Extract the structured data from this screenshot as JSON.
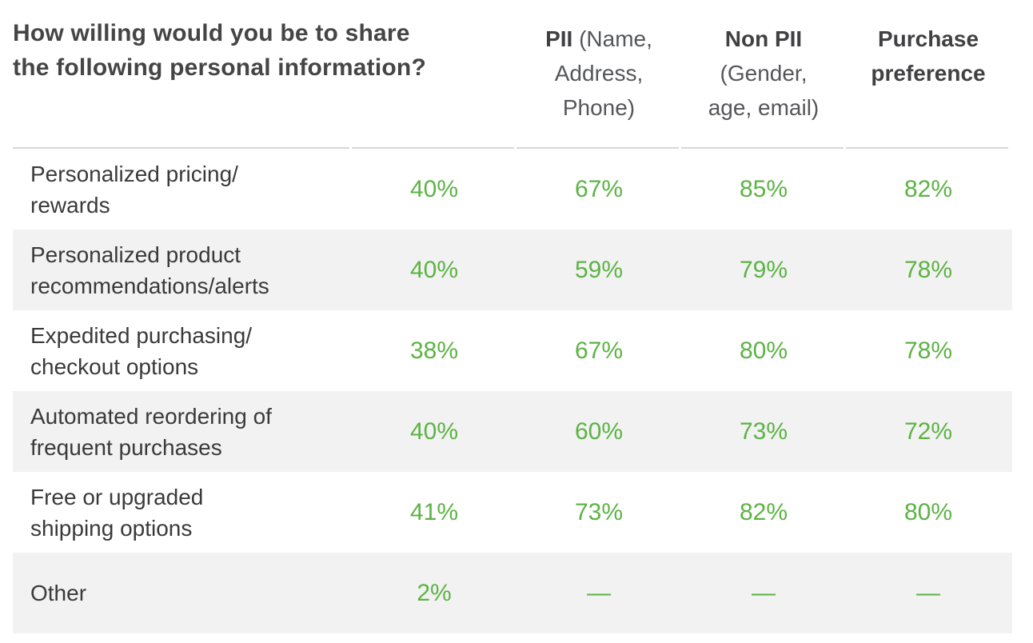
{
  "chart_data": {
    "type": "table",
    "title": "How willing would you be to share the following personal information?",
    "columns": [
      "",
      "PII (Name, Address, Phone)",
      "Non PII (Gender, age, email)",
      "Purchase preference"
    ],
    "row_labels": [
      "Personalized pricing/rewards",
      "Personalized product recommendations/alerts",
      "Expedited purchasing/checkout options",
      "Automated reordering of frequent purchases",
      "Free or upgraded shipping options",
      "Other"
    ],
    "values_pct": [
      [
        40,
        67,
        85,
        82
      ],
      [
        40,
        59,
        79,
        78
      ],
      [
        38,
        67,
        80,
        78
      ],
      [
        40,
        60,
        73,
        72
      ],
      [
        41,
        73,
        82,
        80
      ],
      [
        2,
        null,
        null,
        null
      ]
    ],
    "layout": {
      "grid": "off",
      "row_striping": true,
      "value_alignment": "center"
    }
  },
  "display": {
    "title": "How willing would you be to share\nthe following personal information?",
    "headers": [
      {
        "bold": "PII",
        "rest": " (Name,\nAddress,\nPhone)"
      },
      {
        "bold": "Non PII",
        "rest": "\n(Gender,\nage, email)"
      },
      {
        "bold": "Purchase\npreference",
        "rest": ""
      }
    ],
    "rows": [
      {
        "label": "Personalized pricing/\nrewards",
        "values": [
          "40%",
          "67%",
          "85%",
          "82%"
        ]
      },
      {
        "label": "Personalized product\nrecommendations/alerts",
        "values": [
          "40%",
          "59%",
          "79%",
          "78%"
        ]
      },
      {
        "label": "Expedited purchasing/\ncheckout options",
        "values": [
          "38%",
          "67%",
          "80%",
          "78%"
        ]
      },
      {
        "label": "Automated reordering of\nfrequent purchases",
        "values": [
          "40%",
          "60%",
          "73%",
          "72%"
        ]
      },
      {
        "label": "Free or upgraded\nshipping options",
        "values": [
          "41%",
          "73%",
          "82%",
          "80%"
        ]
      },
      {
        "label": "Other",
        "values": [
          "2%",
          "—",
          "—",
          "—"
        ]
      }
    ],
    "colors": {
      "accent_green": "#5cb344",
      "row_alt_bg": "#f2f2f2",
      "title_text": "#454545",
      "header_bold_text": "#414042",
      "header_light_text": "#55565a",
      "body_text": "#3a3a3a",
      "divider": "#d8d8d8"
    }
  }
}
